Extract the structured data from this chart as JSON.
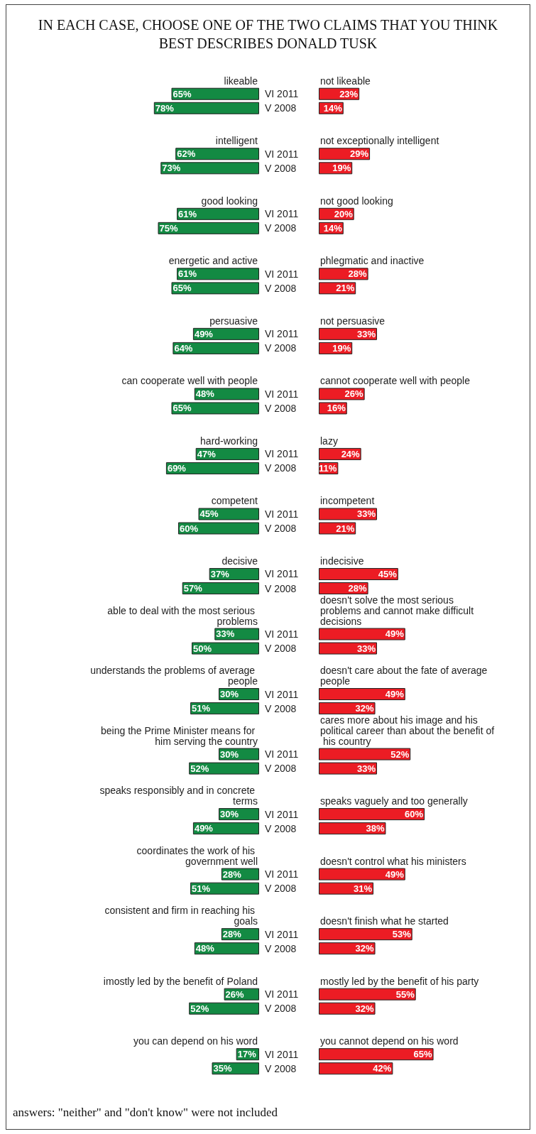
{
  "chart_data": [
    {
      "type": "bar",
      "orientation": "horizontal",
      "title": "IN EACH CASE, CHOOSE ONE OF THE TWO CLAIMS THAT YOU THINK BEST DESCRIBES DONALD TUSK",
      "annotations": [
        "answers: \"neither\" and \"don't know\" were not included"
      ],
      "tick_labels": "y",
      "categories": [
        "likeable",
        "intelligent",
        "good looking",
        "energetic and active",
        "persuasive",
        "can cooperate well with people",
        "hard-working",
        "competent",
        "decisive",
        "able to deal with the most serious problems",
        "understands the problems of average people",
        "being the Prime Minister means for him serving the country",
        "speaks responsibly and in concrete terms",
        "coordinates the work of his government well",
        "consistent and firm in reaching his goals",
        "imostly led by the benefit of Poland",
        "you can depend on his word"
      ],
      "series": [
        {
          "name": "VI 2011",
          "color": "#138a43",
          "values": [
            65,
            62,
            61,
            61,
            49,
            48,
            47,
            45,
            37,
            33,
            30,
            30,
            30,
            28,
            28,
            26,
            17
          ],
          "value_labels": [
            "65%",
            "62%",
            "61%",
            "61%",
            "49%",
            "48%",
            "47%",
            "45%",
            "37%",
            "33%",
            "30%",
            "30%",
            "30%",
            "28%",
            "28%",
            "26%",
            "17%"
          ]
        },
        {
          "name": "V 2008",
          "color": "#138a43",
          "values": [
            78,
            73,
            75,
            65,
            64,
            65,
            69,
            60,
            57,
            50,
            51,
            52,
            49,
            51,
            48,
            52,
            35
          ],
          "value_labels": [
            "78%",
            "73%",
            "75%",
            "65%",
            "64%",
            "65%",
            "69%",
            "60%",
            "57%",
            "50%",
            "51%",
            "52%",
            "49%",
            "51%",
            "48%",
            "52%",
            "35%"
          ]
        }
      ]
    },
    {
      "type": "bar",
      "orientation": "horizontal",
      "tick_labels": "y",
      "categories": [
        "not likeable",
        "not exceptionally intelligent",
        "not good looking",
        "phlegmatic and inactive",
        "not persuasive",
        "cannot cooperate well with people",
        "lazy",
        "incompetent",
        "indecisive",
        "doesn't solve the most serious problems and cannot make difficult decisions",
        "doesn't care about the fate of average people",
        "cares more about his image and his political career than about the benefit of his country",
        "speaks vaguely and too generally",
        "doesn't control what his ministers",
        "doesn't finish what he started",
        "mostly led by the benefit of his party",
        "you cannot depend on his word"
      ],
      "series": [
        {
          "color": "#ec1c24",
          "values": [
            23,
            29,
            20,
            28,
            33,
            26,
            24,
            33,
            45,
            49,
            49,
            52,
            60,
            49,
            53,
            55,
            65
          ],
          "value_labels": [
            "23%",
            "29%",
            "20%",
            "28%",
            "33%",
            "26%",
            "24%",
            "33%",
            "45%",
            "49%",
            "49%",
            "52%",
            "60%",
            "49%",
            "53%",
            "55%",
            "65%"
          ]
        },
        {
          "color": "#ec1c24",
          "values": [
            14,
            19,
            14,
            21,
            19,
            16,
            11,
            21,
            28,
            33,
            32,
            33,
            38,
            31,
            32,
            32,
            42
          ],
          "value_labels": [
            "14%",
            "19%",
            "14%",
            "21%",
            "19%",
            "16%",
            "11%",
            "21%",
            "28%",
            "33%",
            "32%",
            "33%",
            "38%",
            "31%",
            "32%",
            "32%",
            "42%"
          ]
        }
      ]
    }
  ]
}
